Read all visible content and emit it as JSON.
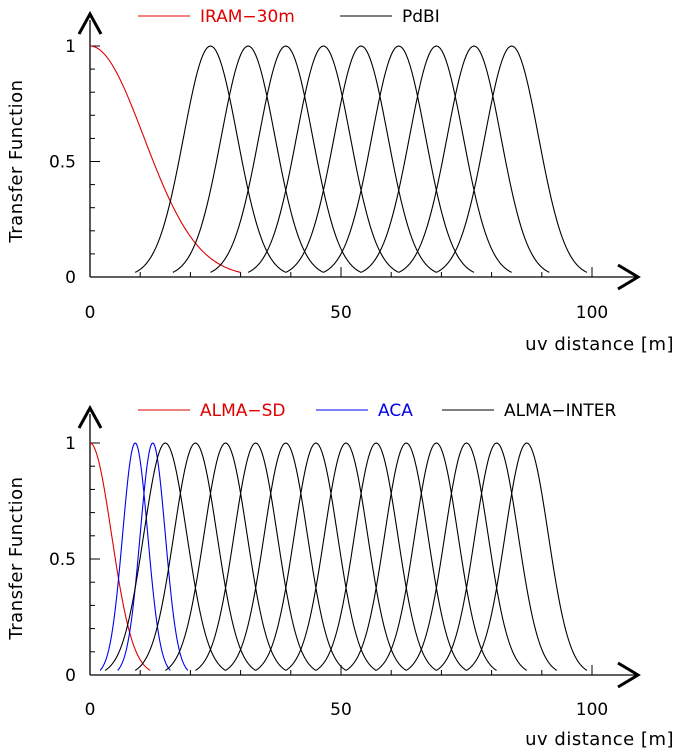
{
  "chart_data": [
    {
      "type": "line",
      "xlabel": "uv distance [m]",
      "ylabel": "Transfer Function",
      "xlim": [
        0,
        100
      ],
      "ylim": [
        0,
        1
      ],
      "xticks": [
        "0",
        "50",
        "100"
      ],
      "yticks": [
        "0",
        "0.5",
        "1"
      ],
      "legend_position": "top",
      "series": [
        {
          "name": "IRAM−30m",
          "color": "#e00000",
          "kind": "gaussian_half",
          "center": 0,
          "half_width": 30,
          "range": [
            0,
            30
          ]
        },
        {
          "name": "PdBI",
          "color": "#000000",
          "kind": "gaussian_family",
          "centers": [
            24,
            31.5,
            39,
            46.5,
            54,
            61.5,
            69,
            76.5,
            84
          ],
          "half_width": 15
        }
      ]
    },
    {
      "type": "line",
      "xlabel": "uv distance [m]",
      "ylabel": "Transfer Function",
      "xlim": [
        0,
        100
      ],
      "ylim": [
        0,
        1
      ],
      "xticks": [
        "0",
        "50",
        "100"
      ],
      "yticks": [
        "0",
        "0.5",
        "1"
      ],
      "legend_position": "top",
      "series": [
        {
          "name": "ALMA−SD",
          "color": "#e00000",
          "kind": "gaussian_half",
          "center": 0,
          "half_width": 12,
          "range": [
            0,
            12
          ]
        },
        {
          "name": "ACA",
          "color": "#0000ee",
          "kind": "gaussian_family",
          "centers": [
            9,
            12.5
          ],
          "half_width": 7
        },
        {
          "name": "ALMA−INTER",
          "color": "#000000",
          "kind": "gaussian_family",
          "centers": [
            15,
            21,
            27,
            33,
            39,
            45,
            51,
            57,
            63,
            69,
            75,
            81,
            87
          ],
          "half_width": 12
        }
      ]
    }
  ]
}
